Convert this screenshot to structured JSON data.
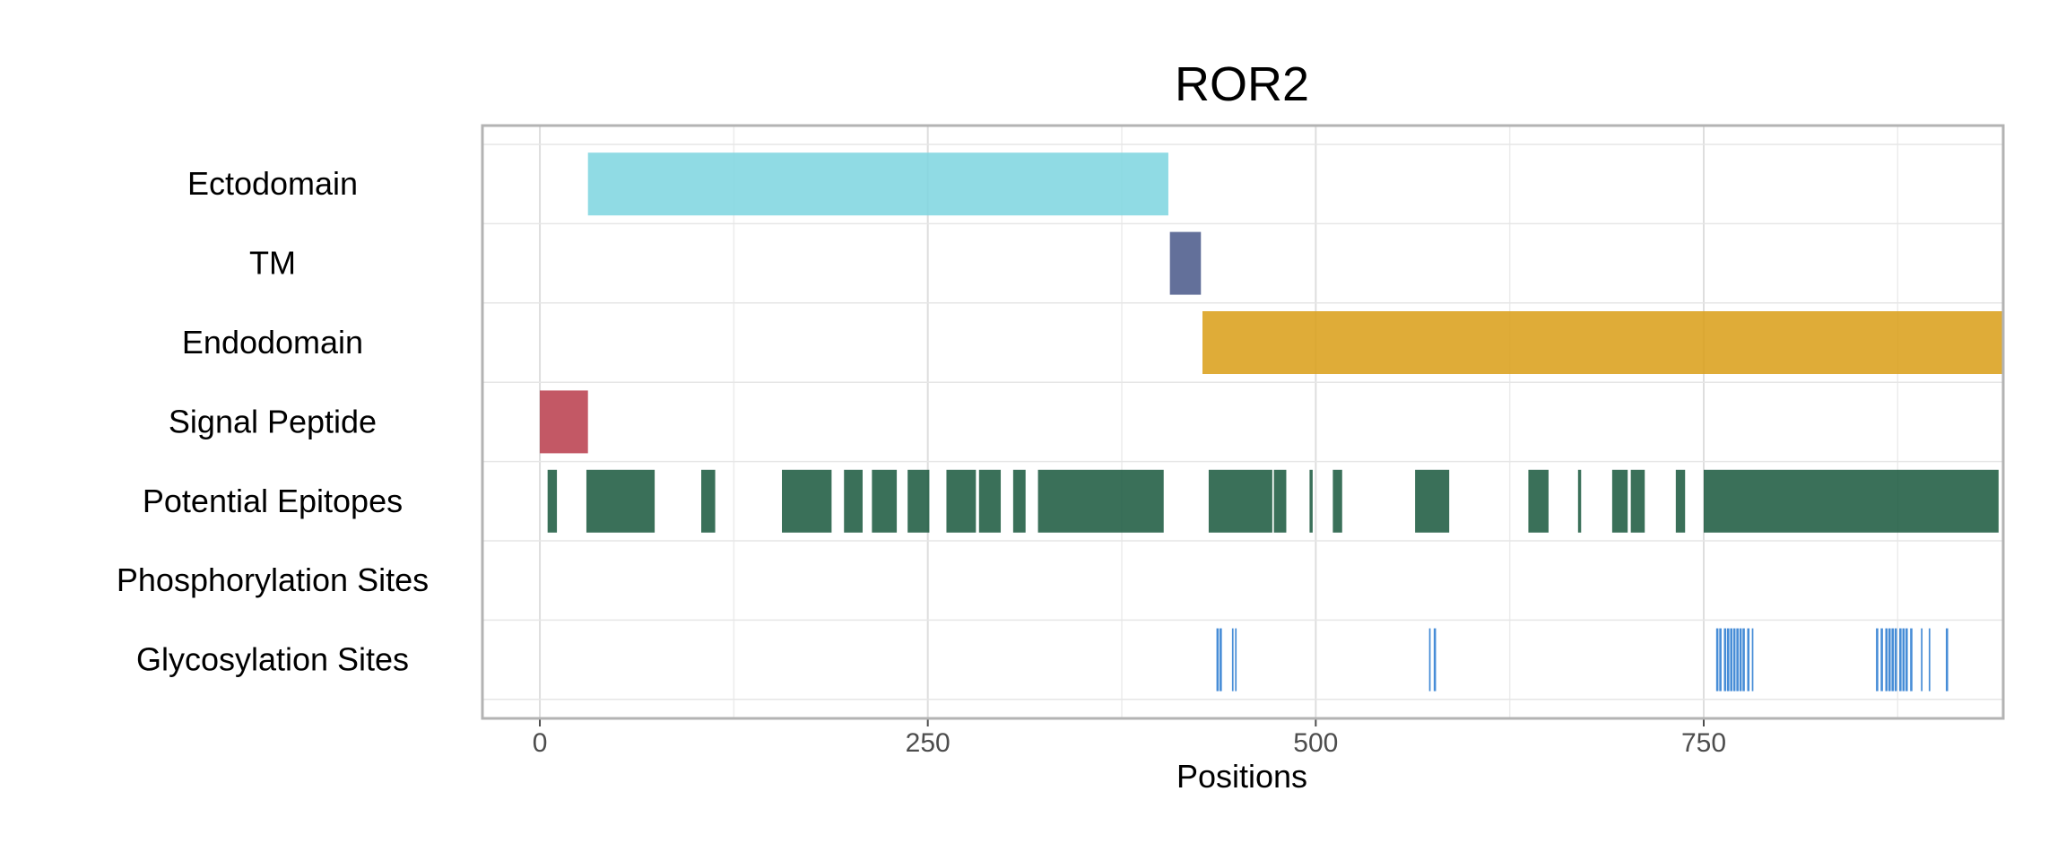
{
  "chart_data": {
    "type": "bar",
    "title": "ROR2",
    "xlabel": "Positions",
    "ylabel": "",
    "xlim": [
      -37,
      943
    ],
    "x_ticks": [
      0,
      250,
      500,
      750
    ],
    "x_tick_labels": [
      "0",
      "250",
      "500",
      "750"
    ],
    "grid": true,
    "categories": [
      "Ectodomain",
      "TM",
      "Endodomain",
      "Signal Peptide",
      "Potential Epitopes",
      "Phosphorylation Sites",
      "Glycosylation Sites"
    ],
    "series": [
      {
        "name": "Ectodomain",
        "color": "#81D6E0",
        "segments": [
          [
            31,
            405
          ]
        ]
      },
      {
        "name": "TM",
        "color": "#4D5C8C",
        "segments": [
          [
            406,
            426
          ]
        ]
      },
      {
        "name": "Endodomain",
        "color": "#DBA11C",
        "segments": [
          [
            427,
            943
          ]
        ]
      },
      {
        "name": "Signal Peptide",
        "color": "#BB4150",
        "segments": [
          [
            0,
            31
          ]
        ]
      },
      {
        "name": "Potential Epitopes",
        "color": "#1F5C42",
        "segments": [
          [
            5,
            11
          ],
          [
            30,
            74
          ],
          [
            104,
            113
          ],
          [
            156,
            188
          ],
          [
            196,
            208
          ],
          [
            214,
            230
          ],
          [
            237,
            251
          ],
          [
            262,
            281
          ],
          [
            283,
            297
          ],
          [
            305,
            313
          ],
          [
            321,
            402
          ],
          [
            431,
            472
          ],
          [
            473,
            481
          ],
          [
            496,
            498
          ],
          [
            511,
            517
          ],
          [
            564,
            586
          ],
          [
            637,
            650
          ],
          [
            669,
            671
          ],
          [
            691,
            701
          ],
          [
            703,
            712
          ],
          [
            732,
            738
          ],
          [
            750,
            940
          ]
        ]
      },
      {
        "name": "Phosphorylation Sites",
        "color": "#2E7DD1",
        "segments": []
      },
      {
        "name": "Glycosylation Sites",
        "color": "#2E7DD1",
        "segments": [
          [
            436,
            437.5
          ],
          [
            438,
            439.5
          ],
          [
            446,
            447
          ],
          [
            448,
            449
          ],
          [
            573,
            574
          ],
          [
            576,
            577.5
          ],
          [
            758,
            759.5
          ],
          [
            760,
            761.5
          ],
          [
            763,
            764.5
          ],
          [
            765,
            766.5
          ],
          [
            767,
            768.5
          ],
          [
            769,
            770.5
          ],
          [
            771,
            772.5
          ],
          [
            773,
            774.5
          ],
          [
            775,
            776.5
          ],
          [
            778,
            779.5
          ],
          [
            781,
            782
          ],
          [
            861,
            862.5
          ],
          [
            864,
            865.5
          ],
          [
            867,
            868.5
          ],
          [
            869,
            870.5
          ],
          [
            871,
            872.5
          ],
          [
            873,
            874.5
          ],
          [
            876,
            877.5
          ],
          [
            878,
            879.5
          ],
          [
            880,
            881.5
          ],
          [
            883,
            884.5
          ],
          [
            890,
            891
          ],
          [
            895,
            896
          ],
          [
            906,
            907.5
          ]
        ]
      }
    ]
  }
}
